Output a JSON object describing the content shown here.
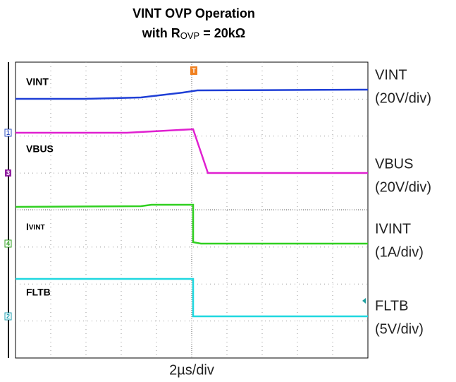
{
  "title": {
    "line1": "VINT OVP Operation",
    "line2_prefix": "with R",
    "line2_sub": "OVP",
    "line2_suffix": " = 20kΩ"
  },
  "trace_labels": {
    "vint": "VINT",
    "vbus": "VBUS",
    "ivint_main": "I",
    "ivint_sub": "VINT",
    "fltb": "FLTB"
  },
  "channel_markers": {
    "ch1": "1",
    "ch3": "3",
    "ch4": "4",
    "ch2": "2",
    "trigger": "T"
  },
  "side_labels": [
    {
      "name": "VINT",
      "scale": "(20V/div)"
    },
    {
      "name": "VBUS",
      "scale": "(20V/div)"
    },
    {
      "name": "IVINT",
      "scale": "(1A/div)"
    },
    {
      "name": "FLTB",
      "scale": "(5V/div)"
    }
  ],
  "time_scale": "2µs/div"
}
